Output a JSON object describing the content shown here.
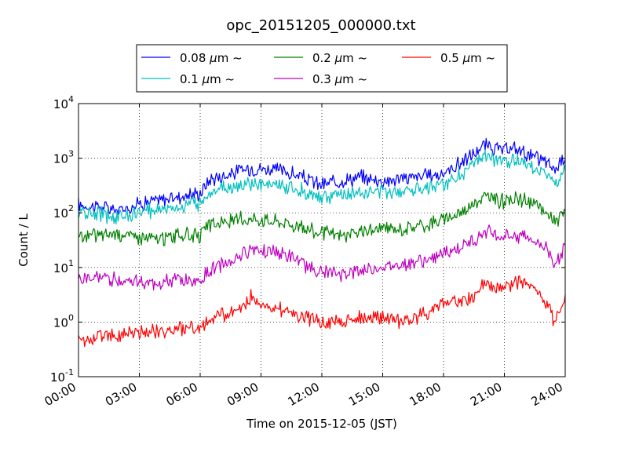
{
  "chart_data": {
    "type": "line",
    "title": "opc_20151205_000000.txt",
    "xlabel": "Time on 2015-12-05 (JST)",
    "ylabel": "Count / L",
    "y_scale": "log",
    "ylim": [
      0.1,
      10000
    ],
    "xlim": [
      "00:00",
      "24:00"
    ],
    "x_ticks": [
      "00:00",
      "03:00",
      "06:00",
      "09:00",
      "12:00",
      "15:00",
      "18:00",
      "21:00",
      "24:00"
    ],
    "y_ticks": [
      {
        "base": "10",
        "exp": "-1",
        "value": 0.1
      },
      {
        "base": "10",
        "exp": "0",
        "value": 1
      },
      {
        "base": "10",
        "exp": "1",
        "value": 10
      },
      {
        "base": "10",
        "exp": "2",
        "value": 100
      },
      {
        "base": "10",
        "exp": "3",
        "value": 1000
      },
      {
        "base": "10",
        "exp": "4",
        "value": 10000
      }
    ],
    "grid": true,
    "legend_position": "top-center, outside plot",
    "legend_unit": "μm",
    "legend_suffix": "~",
    "x_units": "hours",
    "series": [
      {
        "name": "0.08",
        "color": "#0000ff",
        "x": [
          0,
          1,
          2,
          3,
          4,
          5,
          6,
          6.5,
          7,
          7.5,
          8,
          8.5,
          9,
          10,
          11,
          12,
          13,
          14,
          15,
          16,
          17,
          18,
          19,
          19.5,
          20,
          20.5,
          21,
          21.5,
          22,
          22.5,
          23,
          23.5,
          24
        ],
        "values": [
          140,
          130,
          110,
          150,
          170,
          200,
          230,
          420,
          460,
          520,
          600,
          650,
          650,
          600,
          450,
          320,
          400,
          450,
          380,
          430,
          470,
          520,
          900,
          1200,
          1700,
          1500,
          1350,
          1500,
          1300,
          1000,
          900,
          600,
          1200
        ]
      },
      {
        "name": "0.1",
        "color": "#00bfbf",
        "x": [
          0,
          1,
          2,
          3,
          4,
          5,
          6,
          6.5,
          7,
          7.5,
          8,
          8.5,
          9,
          10,
          11,
          12,
          13,
          14,
          15,
          16,
          17,
          18,
          19,
          19.5,
          20,
          20.5,
          21,
          21.5,
          22,
          22.5,
          23,
          23.5,
          24
        ],
        "values": [
          100,
          95,
          85,
          100,
          120,
          130,
          150,
          250,
          280,
          300,
          310,
          330,
          320,
          320,
          260,
          190,
          210,
          240,
          240,
          260,
          300,
          320,
          550,
          750,
          1100,
          900,
          850,
          900,
          850,
          700,
          520,
          350,
          600
        ]
      },
      {
        "name": "0.2",
        "color": "#008000",
        "x": [
          0,
          1,
          2,
          3,
          4,
          5,
          6,
          6.5,
          7,
          7.5,
          8,
          8.5,
          9,
          10,
          11,
          12,
          13,
          14,
          15,
          16,
          17,
          18,
          19,
          19.5,
          20,
          20.5,
          21,
          21.5,
          22,
          22.5,
          23,
          23.5,
          24
        ],
        "values": [
          35,
          40,
          42,
          36,
          33,
          40,
          38,
          60,
          65,
          70,
          75,
          80,
          78,
          70,
          55,
          42,
          38,
          45,
          52,
          50,
          60,
          75,
          110,
          150,
          200,
          180,
          160,
          180,
          170,
          140,
          110,
          65,
          110
        ]
      },
      {
        "name": "0.3",
        "color": "#bf00bf",
        "x": [
          0,
          1,
          2,
          3,
          4,
          5,
          6,
          6.5,
          7,
          7.5,
          8,
          8.5,
          9,
          10,
          11,
          12,
          13,
          14,
          15,
          16,
          17,
          18,
          19,
          19.5,
          20,
          20.5,
          21,
          21.5,
          22,
          22.5,
          23,
          23.5,
          24
        ],
        "values": [
          6,
          6.5,
          6,
          5.5,
          5,
          6,
          5.5,
          9,
          11,
          13,
          17,
          22,
          22,
          18,
          12,
          8,
          7.5,
          9,
          10,
          12,
          13,
          17,
          25,
          32,
          45,
          40,
          35,
          40,
          38,
          30,
          25,
          12,
          25
        ]
      },
      {
        "name": "0.5",
        "color": "#ff0000",
        "x": [
          0,
          1,
          2,
          3,
          4,
          5,
          6,
          6.5,
          7,
          7.5,
          8,
          8.5,
          9,
          10,
          11,
          12,
          13,
          14,
          15,
          16,
          17,
          18,
          19,
          19.5,
          20,
          20.5,
          21,
          21.5,
          22,
          22.5,
          23,
          23.5,
          24
        ],
        "values": [
          0.45,
          0.55,
          0.6,
          0.65,
          0.7,
          0.72,
          0.8,
          1.1,
          1.3,
          1.5,
          1.7,
          3.0,
          2.2,
          1.7,
          1.3,
          1.0,
          1.0,
          1.2,
          1.2,
          1.0,
          1.4,
          2.2,
          2.5,
          3.0,
          5.0,
          4.0,
          4.5,
          5.0,
          5.5,
          3.5,
          2.5,
          1.0,
          2.5
        ]
      }
    ]
  }
}
